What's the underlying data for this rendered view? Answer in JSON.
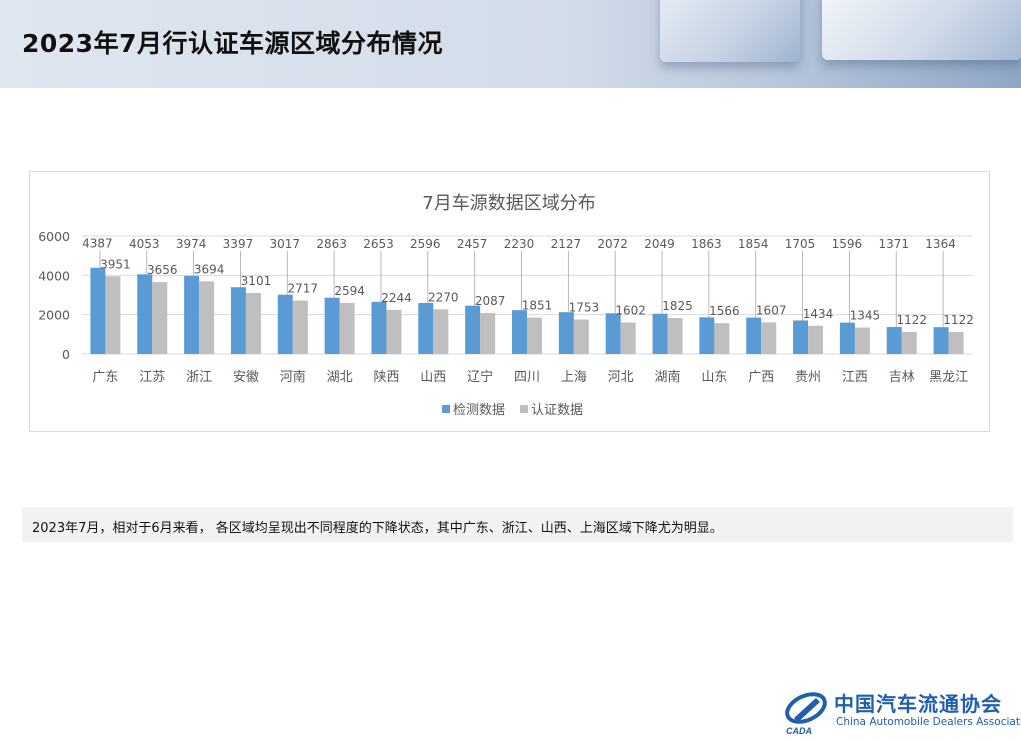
{
  "page": {
    "title": "2023年7月行认证车源区域分布情况"
  },
  "note": {
    "text": "2023年7月，相对于6月来看， 各区域均呈现出不同程度的下降状态，其中广东、浙江、山西、上海区域下降尤为明显。"
  },
  "logo": {
    "cn": "中国汽车流通协会",
    "en": "China Automobile Dealers Association",
    "mark": "CADA"
  },
  "colors": {
    "series1": "#5b9bd5",
    "series2": "#bfbfbf",
    "grid": "#d9d9d9",
    "text": "#595959"
  },
  "chart_data": {
    "type": "bar",
    "title": "7月车源数据区域分布",
    "categories": [
      "广东",
      "江苏",
      "浙江",
      "安徽",
      "河南",
      "湖北",
      "陕西",
      "山西",
      "辽宁",
      "四川",
      "上海",
      "河北",
      "湖南",
      "山东",
      "广西",
      "贵州",
      "江西",
      "吉林",
      "黑龙江"
    ],
    "series": [
      {
        "name": "检测数据",
        "color": "#5b9bd5",
        "values": [
          4387,
          4053,
          3974,
          3397,
          3017,
          2863,
          2653,
          2596,
          2457,
          2230,
          2127,
          2072,
          2049,
          1863,
          1854,
          1705,
          1596,
          1371,
          1364
        ]
      },
      {
        "name": "认证数据",
        "color": "#bfbfbf",
        "values": [
          3951,
          3656,
          3694,
          3101,
          2717,
          2594,
          2244,
          2270,
          2087,
          1851,
          1753,
          1602,
          1825,
          1566,
          1607,
          1434,
          1345,
          1122,
          1122
        ]
      }
    ],
    "yticks": [
      0,
      2000,
      4000,
      6000
    ],
    "ylim": [
      0,
      6000
    ],
    "grid": true,
    "legend": "bottom"
  }
}
